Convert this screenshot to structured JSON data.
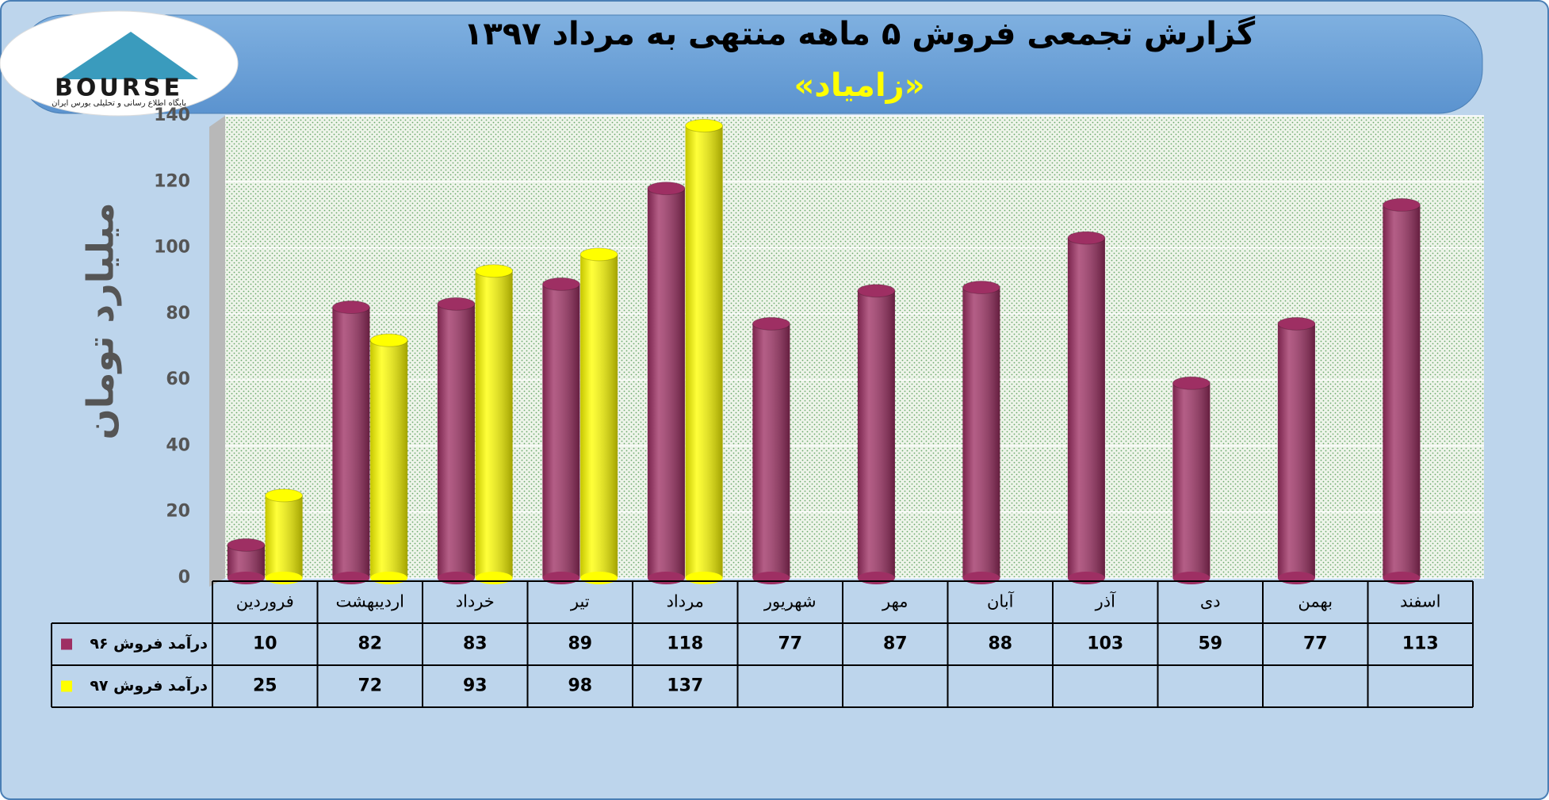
{
  "logo": {
    "name": "BOURSE",
    "tagline": "پایگاه اطلاع رسانی و تحلیلی بورس ایران"
  },
  "chart_data": {
    "type": "bar",
    "title": "گزارش تجمعی فروش ۵ ماهه منتهی به مرداد ۱۳۹۷",
    "subtitle": "«زامیاد»",
    "y_label": "میلیارد تومان",
    "categories": [
      "فروردین",
      "اردیبهشت",
      "خرداد",
      "تیر",
      "مرداد",
      "شهریور",
      "مهر",
      "آبان",
      "آذر",
      "دی",
      "بهمن",
      "اسفند"
    ],
    "series": [
      {
        "name": "درآمد فروش ۹۶",
        "color": "#9e2f63",
        "values": [
          10,
          82,
          83,
          89,
          118,
          77,
          87,
          88,
          103,
          59,
          77,
          113
        ]
      },
      {
        "name": "درآمد فروش ۹۷",
        "color": "#ffff00",
        "values": [
          25,
          72,
          93,
          98,
          137,
          null,
          null,
          null,
          null,
          null,
          null,
          null
        ]
      }
    ],
    "ylim": [
      0,
      140
    ],
    "yticks": [
      0,
      20,
      40,
      60,
      80,
      100,
      120,
      140
    ],
    "grid": true
  }
}
